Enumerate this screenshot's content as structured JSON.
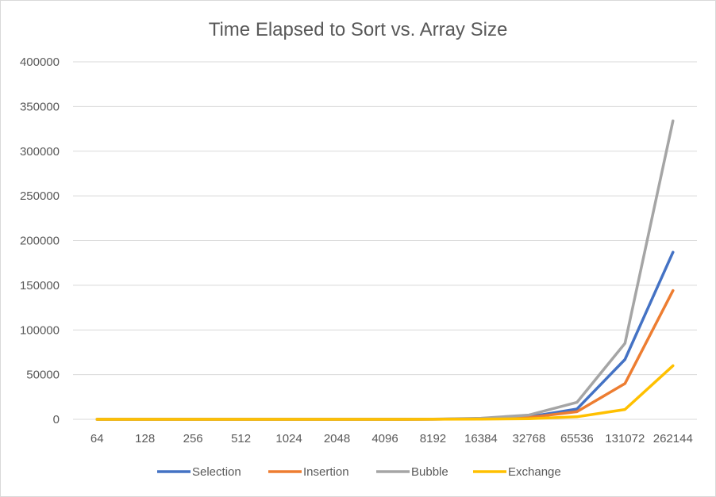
{
  "chart_data": {
    "type": "line",
    "title": "Time Elapsed to Sort vs. Array Size",
    "xlabel": "",
    "ylabel": "",
    "categories": [
      "64",
      "128",
      "256",
      "512",
      "1024",
      "2048",
      "4096",
      "8192",
      "16384",
      "32768",
      "65536",
      "131072",
      "262144"
    ],
    "ylim": [
      0,
      400000
    ],
    "yticks": [
      "0",
      "50000",
      "100000",
      "150000",
      "200000",
      "250000",
      "300000",
      "350000",
      "400000"
    ],
    "grid": "horizontal",
    "legend": "bottom",
    "series": [
      {
        "name": "Selection",
        "color": "#4472c4",
        "values": [
          0,
          0,
          0,
          0,
          0,
          0,
          0,
          100,
          700,
          2800,
          11500,
          67000,
          187000
        ]
      },
      {
        "name": "Insertion",
        "color": "#ed7d31",
        "values": [
          0,
          0,
          0,
          0,
          0,
          0,
          0,
          100,
          500,
          2000,
          8500,
          40000,
          144000
        ]
      },
      {
        "name": "Bubble",
        "color": "#a5a5a5",
        "values": [
          0,
          0,
          0,
          0,
          0,
          0,
          0,
          200,
          1200,
          4800,
          19000,
          85000,
          334000
        ]
      },
      {
        "name": "Exchange",
        "color": "#ffc000",
        "values": [
          0,
          0,
          0,
          0,
          0,
          0,
          0,
          50,
          200,
          700,
          2800,
          11000,
          60000
        ]
      }
    ]
  }
}
